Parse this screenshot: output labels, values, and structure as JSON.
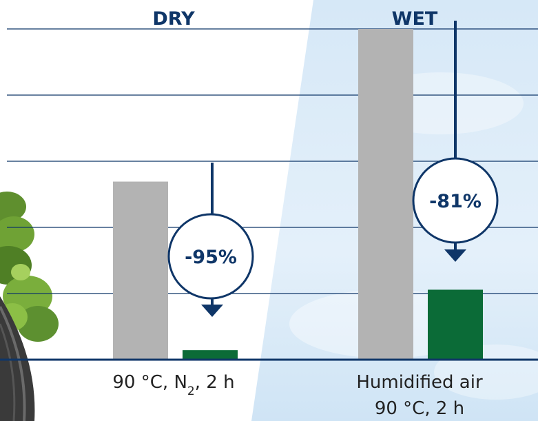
{
  "chart_data": {
    "type": "bar",
    "panels": [
      {
        "title": "DRY",
        "category_lines": [
          "90 °C, N",
          "2",
          ", 2 h"
        ],
        "values": [
          2.8,
          0.15
        ],
        "change_label": "-95%"
      },
      {
        "title": "WET",
        "category_lines": [
          "Humidified air",
          "90 °C, 2 h"
        ],
        "values": [
          5.2,
          1.1
        ],
        "change_label": "-81%"
      }
    ],
    "series": [
      {
        "name": "",
        "color": "#b3b3b3"
      },
      {
        "name": "",
        "color": "#0b6b37"
      }
    ],
    "ylim": [
      0,
      5.2
    ],
    "grid": true,
    "xlabel": "",
    "ylabel": "",
    "title": ""
  },
  "colors": {
    "axis": "#0f3668",
    "grid": "#0f3668",
    "arrow": "#0f3668",
    "sky": "#dcecf8"
  }
}
